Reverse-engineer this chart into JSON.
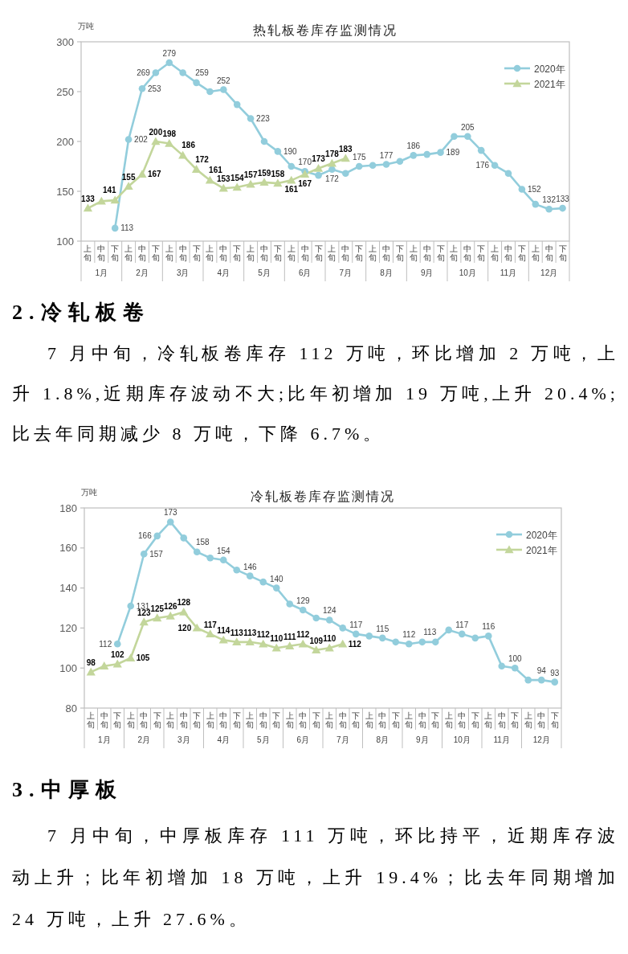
{
  "chart_data": [
    {
      "type": "line",
      "title": "热轧板卷库存监测情况",
      "ylabel": "万吨",
      "categories": [
        "上旬",
        "中旬",
        "下旬",
        "上旬",
        "中旬",
        "下旬",
        "上旬",
        "中旬",
        "下旬",
        "上旬",
        "中旬",
        "下旬",
        "上旬",
        "中旬",
        "下旬",
        "上旬",
        "中旬",
        "下旬",
        "上旬",
        "中旬",
        "下旬",
        "上旬",
        "中旬",
        "下旬",
        "上旬",
        "中旬",
        "下旬",
        "上旬",
        "中旬",
        "下旬",
        "上旬",
        "中旬",
        "下旬",
        "上旬",
        "中旬",
        "下旬"
      ],
      "ylim": [
        100,
        300
      ],
      "yticks": [
        100,
        150,
        200,
        250,
        300
      ],
      "legend": "top right",
      "annotations": [
        "1月",
        "2月",
        "3月",
        "4月",
        "5月",
        "6月",
        "7月",
        "8月",
        "9月",
        "10月",
        "11月",
        "12月"
      ],
      "series": [
        {
          "name": "2020年",
          "color": "#92cddc",
          "marker": "circle",
          "values": [
            null,
            null,
            113,
            202,
            253,
            269,
            279,
            269,
            259,
            250,
            252,
            237,
            223,
            200,
            190,
            175,
            170,
            166,
            172,
            168,
            175,
            176,
            177,
            180,
            186,
            187,
            189,
            205,
            205,
            191,
            176,
            168,
            152,
            137,
            132,
            133
          ],
          "value_labels": [
            null,
            null,
            "113",
            "202",
            "253",
            "269",
            "279",
            null,
            "259",
            null,
            "252",
            null,
            "223",
            null,
            "190",
            null,
            "170",
            null,
            "172",
            null,
            "175",
            null,
            "177",
            null,
            "186",
            null,
            "189",
            null,
            "205",
            null,
            "176",
            null,
            "152",
            null,
            "132",
            "133"
          ]
        },
        {
          "name": "2021年",
          "color": "#c3d69b",
          "marker": "triangle",
          "values": [
            133,
            140,
            141,
            155,
            167,
            200,
            198,
            186,
            172,
            161,
            153,
            154,
            157,
            159,
            158,
            161,
            167,
            173,
            178,
            183,
            null,
            null,
            null,
            null,
            null,
            null,
            null,
            null,
            null,
            null,
            null,
            null,
            null,
            null,
            null,
            null
          ],
          "value_labels": [
            "133",
            null,
            "141",
            "155",
            "167",
            "200",
            "198",
            "186",
            "172",
            "161",
            "153",
            "154",
            "157",
            "159",
            "158",
            "161",
            "167",
            "173",
            "178",
            "183",
            null,
            null,
            null,
            null,
            null,
            null,
            null,
            null,
            null,
            null,
            null,
            null,
            null,
            null,
            null,
            null
          ]
        }
      ]
    },
    {
      "type": "other",
      "title": "2.冷轧板卷",
      "annotations": [
        "7 月中旬，冷轧板卷库存 112 万吨，环比增加 2 万吨，上升 1.8%,近期库存波动不大;比年初增加 19 万吨,上升 20.4%;比去年同期减少 8 万吨，下降 6.7%。"
      ]
    },
    {
      "type": "line",
      "title": "冷轧板卷库存监测情况",
      "ylabel": "万吨",
      "categories": [
        "上旬",
        "中旬",
        "下旬",
        "上旬",
        "中旬",
        "下旬",
        "上旬",
        "中旬",
        "下旬",
        "上旬",
        "中旬",
        "下旬",
        "上旬",
        "中旬",
        "下旬",
        "上旬",
        "中旬",
        "下旬",
        "上旬",
        "中旬",
        "下旬",
        "上旬",
        "中旬",
        "下旬",
        "上旬",
        "中旬",
        "下旬",
        "上旬",
        "中旬",
        "下旬",
        "上旬",
        "中旬",
        "下旬",
        "上旬",
        "中旬",
        "下旬"
      ],
      "ylim": [
        80,
        180
      ],
      "yticks": [
        80,
        100,
        120,
        140,
        160,
        180
      ],
      "legend": "top right",
      "annotations": [
        "1月",
        "2月",
        "3月",
        "4月",
        "5月",
        "6月",
        "7月",
        "8月",
        "9月",
        "10月",
        "11月",
        "12月"
      ],
      "series": [
        {
          "name": "2020年",
          "color": "#92cddc",
          "marker": "circle",
          "values": [
            null,
            null,
            112,
            131,
            157,
            166,
            173,
            165,
            158,
            155,
            154,
            149,
            146,
            143,
            140,
            132,
            129,
            125,
            124,
            120,
            117,
            116,
            115,
            113,
            112,
            113,
            113,
            119,
            117,
            115,
            116,
            101,
            100,
            94,
            94,
            93
          ],
          "value_labels": [
            null,
            null,
            "112",
            "131",
            "157",
            "166",
            "173",
            null,
            "158",
            null,
            "154",
            null,
            "146",
            null,
            "140",
            null,
            "129",
            null,
            "124",
            null,
            "117",
            null,
            "115",
            null,
            "112",
            null,
            "113",
            null,
            "117",
            null,
            "116",
            null,
            "100",
            null,
            "94",
            "93"
          ]
        },
        {
          "name": "2021年",
          "color": "#c3d69b",
          "marker": "triangle",
          "values": [
            98,
            101,
            102,
            105,
            123,
            125,
            126,
            128,
            120,
            117,
            114,
            113,
            113,
            112,
            110,
            111,
            112,
            109,
            110,
            112,
            null,
            null,
            null,
            null,
            null,
            null,
            null,
            null,
            null,
            null,
            null,
            null,
            null,
            null,
            null,
            null
          ],
          "value_labels": [
            "98",
            null,
            "102",
            "105",
            "123",
            "125",
            "126",
            "128",
            "120",
            "117",
            "114",
            "113",
            "113",
            "112",
            "110",
            "111",
            "112",
            "109",
            "110",
            "112",
            null,
            null,
            null,
            null,
            null,
            null,
            null,
            null,
            null,
            null,
            null,
            null,
            null,
            null,
            null,
            null
          ]
        }
      ]
    },
    {
      "type": "other",
      "title": "3.中厚板",
      "annotations": [
        "7 月中旬，中厚板库存 111 万吨，环比持平，近期库存波动上升；比年初增加 18 万吨，上升 19.4%；比去年同期增加 24 万吨，上升 27.6%。"
      ]
    }
  ]
}
